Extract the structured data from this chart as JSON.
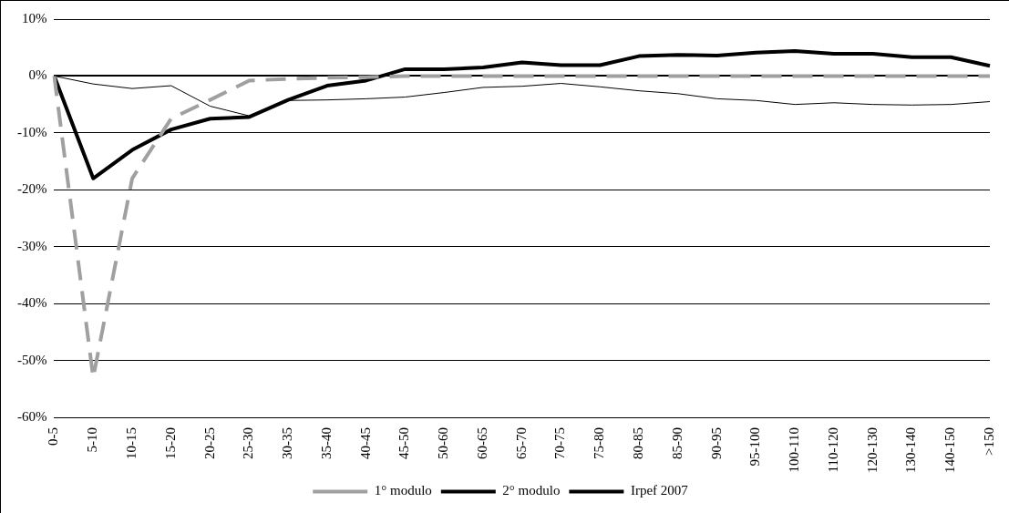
{
  "chart_data": {
    "type": "line",
    "categories": [
      "0-5",
      "5-10",
      "10-15",
      "15-20",
      "20-25",
      "25-30",
      "30-35",
      "35-40",
      "40-45",
      "45-50",
      "50-60",
      "60-65",
      "65-70",
      "70-75",
      "75-80",
      "80-85",
      "85-90",
      "90-95",
      "95-100",
      "100-110",
      "110-120",
      "120-130",
      "130-140",
      "140-150",
      ">150"
    ],
    "series": [
      {
        "name": "1° modulo",
        "color": "#a0a0a0",
        "line_style": "dashed",
        "values": [
          0,
          -53,
          -18,
          -7.5,
          -4.2,
          -0.8,
          -0.5,
          -0.3,
          -0.2,
          0,
          0,
          0,
          0,
          0,
          0,
          0,
          0,
          0,
          0,
          0,
          0,
          0,
          0,
          0,
          0
        ]
      },
      {
        "name": "2° modulo",
        "color": "#000000",
        "line_style": "solid",
        "values": [
          0,
          -1.4,
          -2.2,
          -1.7,
          -5.3,
          -7.0,
          -4.3,
          -4.2,
          -4.0,
          -3.7,
          -2.9,
          -2.0,
          -1.8,
          -1.3,
          -1.9,
          -2.6,
          -3.1,
          -4.0,
          -4.3,
          -5.0,
          -4.7,
          -5.0,
          -5.1,
          -5.0,
          -4.5
        ]
      },
      {
        "name": "Irpef 2007",
        "color": "#000000",
        "line_style": "solid",
        "values": [
          0,
          -18,
          -13,
          -9.4,
          -7.5,
          -7.2,
          -4.2,
          -1.7,
          -0.8,
          1.2,
          1.2,
          1.5,
          2.4,
          1.9,
          1.9,
          3.5,
          3.7,
          3.6,
          4.1,
          4.4,
          3.9,
          3.9,
          3.3,
          3.3,
          1.8
        ]
      }
    ],
    "ylim": [
      -60,
      10
    ],
    "yticks": [
      {
        "value": -60,
        "label": "-60%"
      },
      {
        "value": -50,
        "label": "-50%"
      },
      {
        "value": -40,
        "label": "-40%"
      },
      {
        "value": -30,
        "label": "-30%"
      },
      {
        "value": -20,
        "label": "-20%"
      },
      {
        "value": -10,
        "label": "-10%"
      },
      {
        "value": 0,
        "label": "0%"
      },
      {
        "value": 10,
        "label": "10%"
      }
    ],
    "grid": "y",
    "legend": "bottom",
    "marker": "none"
  }
}
